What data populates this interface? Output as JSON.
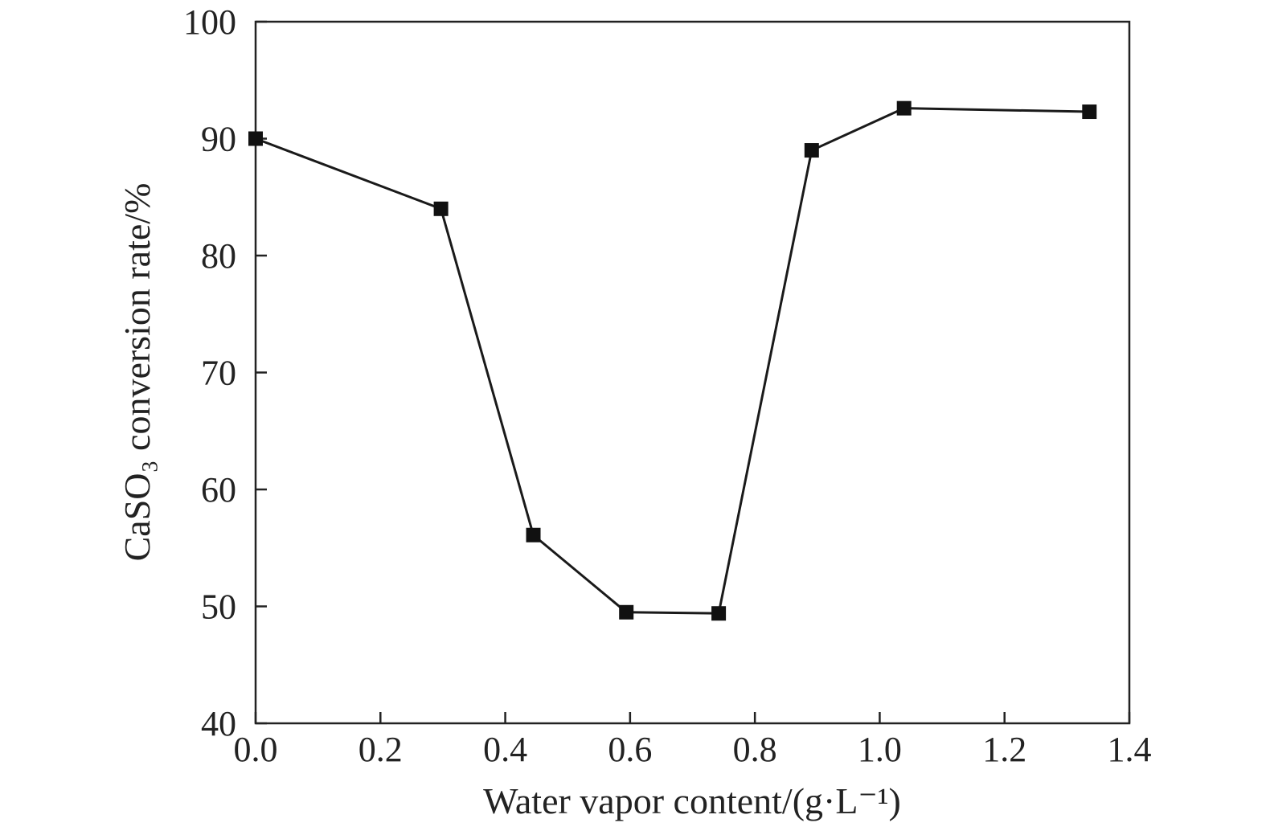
{
  "chart_data": {
    "type": "line",
    "title": "",
    "xlabel": "Water vapor content/(g·L⁻¹)",
    "ylabel": "CaSO₃ conversion rate/%",
    "xlim": [
      0.0,
      1.4
    ],
    "ylim": [
      40,
      100
    ],
    "xticks": [
      "0.0",
      "0.2",
      "0.4",
      "0.6",
      "0.8",
      "1.0",
      "1.2",
      "1.4"
    ],
    "yticks": [
      "40",
      "50",
      "60",
      "70",
      "80",
      "90",
      "100"
    ],
    "grid": false,
    "legend": "none",
    "marker": "filled-square",
    "line_color": "#1a1a1a",
    "series": [
      {
        "x": [
          0.0,
          0.297,
          0.445,
          0.594,
          0.742,
          0.891,
          1.039,
          1.336
        ],
        "y": [
          90.0,
          84.0,
          56.1,
          49.5,
          49.4,
          89.0,
          92.6,
          92.3
        ]
      }
    ]
  }
}
